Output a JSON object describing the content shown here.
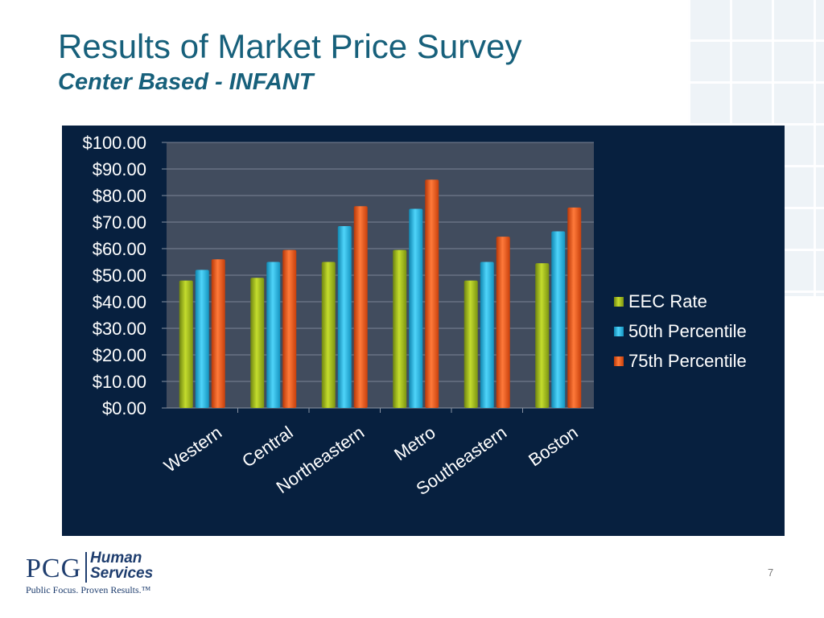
{
  "slide": {
    "title": "Results of Market Price Survey",
    "subtitle": "Center Based - INFANT",
    "page_number": "7"
  },
  "logo": {
    "brand": "PCG",
    "unit_line1": "Human",
    "unit_line2": "Services",
    "tagline": "Public Focus. Proven Results.™"
  },
  "colors": {
    "title": "#17607b",
    "chart_background": "#07203f",
    "plot_background": "#414c5e",
    "eec": "#a3bd1c",
    "p50": "#22b9e8",
    "p75": "#f2561a"
  },
  "chart_data": {
    "type": "bar",
    "categories": [
      "Western",
      "Central",
      "Northeastern",
      "Metro",
      "Southeastern",
      "Boston"
    ],
    "series": [
      {
        "name": "EEC Rate",
        "color": "#a3bd1c",
        "values": [
          48,
          49,
          55,
          59.5,
          48,
          54.5
        ]
      },
      {
        "name": "50th Percentile",
        "color": "#22b9e8",
        "values": [
          52,
          55,
          68.5,
          75,
          55,
          66.5
        ]
      },
      {
        "name": "75th Percentile",
        "color": "#f2561a",
        "values": [
          56,
          59.5,
          76,
          86,
          64.5,
          75.5
        ]
      }
    ],
    "y_ticks": [
      "$0.00",
      "$10.00",
      "$20.00",
      "$30.00",
      "$40.00",
      "$50.00",
      "$60.00",
      "$70.00",
      "$80.00",
      "$90.00",
      "$100.00"
    ],
    "ylim": [
      0,
      100
    ],
    "grid": true,
    "legend_position": "right"
  }
}
